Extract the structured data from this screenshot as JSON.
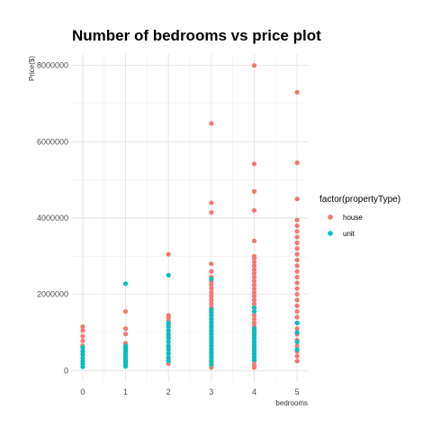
{
  "chart_data": {
    "type": "scatter",
    "title": "Number of bedrooms vs price plot",
    "xlabel": "bedrooms",
    "ylabel": "Price($)",
    "x_ticks": [
      0,
      1,
      2,
      3,
      4,
      5
    ],
    "y_ticks": [
      0,
      2000000,
      4000000,
      6000000,
      8000000
    ],
    "y_tick_labels": [
      "0",
      "2000000",
      "4000000",
      "6000000",
      "8000000"
    ],
    "xlim": [
      -0.25,
      5.25
    ],
    "ylim": [
      -300000,
      8300000
    ],
    "grid": true,
    "legend_title": "factor(propertyType)",
    "legend_position": "right",
    "series": [
      {
        "name": "house",
        "color": "#F8766D",
        "points": [
          [
            0,
            1150000
          ],
          [
            0,
            1050000
          ],
          [
            0,
            900000
          ],
          [
            0,
            780000
          ],
          [
            0,
            650000
          ],
          [
            0,
            520000
          ],
          [
            0,
            420000
          ],
          [
            1,
            1550000
          ],
          [
            1,
            1100000
          ],
          [
            1,
            960000
          ],
          [
            1,
            720000
          ],
          [
            2,
            3050000
          ],
          [
            2,
            1450000
          ],
          [
            2,
            1380000
          ],
          [
            2,
            1300000
          ],
          [
            2,
            1200000
          ],
          [
            2,
            1050000
          ],
          [
            2,
            900000
          ],
          [
            2,
            750000
          ],
          [
            2,
            600000
          ],
          [
            2,
            450000
          ],
          [
            2,
            300000
          ],
          [
            2,
            180000
          ],
          [
            3,
            6480000
          ],
          [
            3,
            4400000
          ],
          [
            3,
            4150000
          ],
          [
            3,
            2800000
          ],
          [
            3,
            2600000
          ],
          [
            3,
            2450000
          ],
          [
            3,
            2350000
          ],
          [
            3,
            2250000
          ],
          [
            3,
            2150000
          ],
          [
            3,
            2050000
          ],
          [
            3,
            1950000
          ],
          [
            3,
            1850000
          ],
          [
            3,
            1750000
          ],
          [
            3,
            1650000
          ],
          [
            3,
            1550000
          ],
          [
            3,
            1450000
          ],
          [
            3,
            1350000
          ],
          [
            3,
            1250000
          ],
          [
            3,
            1150000
          ],
          [
            3,
            1050000
          ],
          [
            3,
            950000
          ],
          [
            3,
            850000
          ],
          [
            3,
            750000
          ],
          [
            3,
            650000
          ],
          [
            3,
            550000
          ],
          [
            3,
            450000
          ],
          [
            3,
            350000
          ],
          [
            3,
            250000
          ],
          [
            3,
            150000
          ],
          [
            3,
            80000
          ],
          [
            4,
            8000000
          ],
          [
            4,
            5420000
          ],
          [
            4,
            4700000
          ],
          [
            4,
            4200000
          ],
          [
            4,
            3400000
          ],
          [
            4,
            3000000
          ],
          [
            4,
            2950000
          ],
          [
            4,
            2850000
          ],
          [
            4,
            2750000
          ],
          [
            4,
            2650000
          ],
          [
            4,
            2550000
          ],
          [
            4,
            2450000
          ],
          [
            4,
            2350000
          ],
          [
            4,
            2250000
          ],
          [
            4,
            2150000
          ],
          [
            4,
            2050000
          ],
          [
            4,
            1950000
          ],
          [
            4,
            1850000
          ],
          [
            4,
            1750000
          ],
          [
            4,
            1650000
          ],
          [
            4,
            1550000
          ],
          [
            4,
            1450000
          ],
          [
            4,
            1350000
          ],
          [
            4,
            1250000
          ],
          [
            4,
            1150000
          ],
          [
            4,
            1050000
          ],
          [
            4,
            950000
          ],
          [
            4,
            850000
          ],
          [
            4,
            750000
          ],
          [
            4,
            650000
          ],
          [
            4,
            550000
          ],
          [
            4,
            450000
          ],
          [
            4,
            350000
          ],
          [
            4,
            250000
          ],
          [
            4,
            150000
          ],
          [
            4,
            80000
          ],
          [
            5,
            7300000
          ],
          [
            5,
            5450000
          ],
          [
            5,
            4500000
          ],
          [
            5,
            3950000
          ],
          [
            5,
            3800000
          ],
          [
            5,
            3650000
          ],
          [
            5,
            3500000
          ],
          [
            5,
            3350000
          ],
          [
            5,
            3200000
          ],
          [
            5,
            3050000
          ],
          [
            5,
            2900000
          ],
          [
            5,
            2750000
          ],
          [
            5,
            2600000
          ],
          [
            5,
            2450000
          ],
          [
            5,
            2300000
          ],
          [
            5,
            2150000
          ],
          [
            5,
            2000000
          ],
          [
            5,
            1850000
          ],
          [
            5,
            1700000
          ],
          [
            5,
            1550000
          ],
          [
            5,
            1400000
          ],
          [
            5,
            1250000
          ],
          [
            5,
            1100000
          ],
          [
            5,
            950000
          ],
          [
            5,
            800000
          ],
          [
            5,
            650000
          ],
          [
            5,
            500000
          ],
          [
            5,
            380000
          ],
          [
            5,
            250000
          ]
        ]
      },
      {
        "name": "unit",
        "color": "#00BFC4",
        "points": [
          [
            0,
            600000
          ],
          [
            0,
            500000
          ],
          [
            0,
            420000
          ],
          [
            0,
            330000
          ],
          [
            0,
            250000
          ],
          [
            0,
            180000
          ],
          [
            0,
            100000
          ],
          [
            1,
            2280000
          ],
          [
            1,
            650000
          ],
          [
            1,
            600000
          ],
          [
            1,
            550000
          ],
          [
            1,
            500000
          ],
          [
            1,
            460000
          ],
          [
            1,
            420000
          ],
          [
            1,
            380000
          ],
          [
            1,
            340000
          ],
          [
            1,
            300000
          ],
          [
            1,
            260000
          ],
          [
            1,
            220000
          ],
          [
            1,
            180000
          ],
          [
            1,
            140000
          ],
          [
            1,
            110000
          ],
          [
            2,
            2500000
          ],
          [
            2,
            1250000
          ],
          [
            2,
            1150000
          ],
          [
            2,
            1050000
          ],
          [
            2,
            950000
          ],
          [
            2,
            850000
          ],
          [
            2,
            750000
          ],
          [
            2,
            650000
          ],
          [
            2,
            550000
          ],
          [
            2,
            450000
          ],
          [
            2,
            350000
          ],
          [
            2,
            250000
          ],
          [
            3,
            2400000
          ],
          [
            3,
            1600000
          ],
          [
            3,
            1520000
          ],
          [
            3,
            1440000
          ],
          [
            3,
            1360000
          ],
          [
            3,
            1280000
          ],
          [
            3,
            1200000
          ],
          [
            3,
            1120000
          ],
          [
            3,
            1040000
          ],
          [
            3,
            960000
          ],
          [
            3,
            880000
          ],
          [
            3,
            800000
          ],
          [
            3,
            720000
          ],
          [
            3,
            640000
          ],
          [
            3,
            560000
          ],
          [
            3,
            480000
          ],
          [
            3,
            400000
          ],
          [
            3,
            320000
          ],
          [
            3,
            240000
          ],
          [
            3,
            160000
          ],
          [
            4,
            1650000
          ],
          [
            4,
            1550000
          ],
          [
            4,
            1100000
          ],
          [
            4,
            1000000
          ],
          [
            4,
            920000
          ],
          [
            4,
            840000
          ],
          [
            4,
            760000
          ],
          [
            4,
            680000
          ],
          [
            4,
            600000
          ],
          [
            4,
            520000
          ],
          [
            4,
            440000
          ],
          [
            4,
            360000
          ],
          [
            4,
            280000
          ],
          [
            5,
            1250000
          ],
          [
            5,
            1000000
          ],
          [
            5,
            750000
          ],
          [
            5,
            550000
          ]
        ]
      }
    ]
  }
}
